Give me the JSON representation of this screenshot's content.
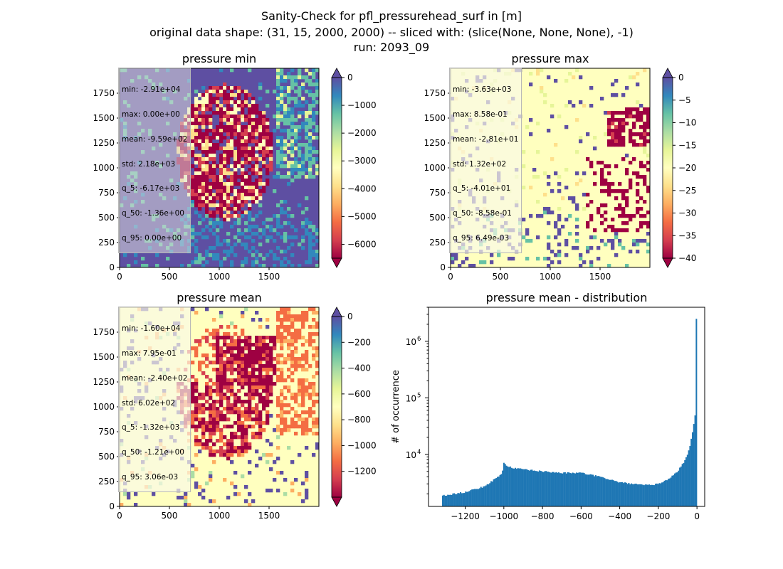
{
  "figure": {
    "title_lines": [
      "Sanity-Check for pfl_pressurehead_surf in [m]",
      "original data shape: (31, 15, 2000, 2000) -- sliced with: (slice(None, None, None), -1)",
      "run: 2093_09"
    ]
  },
  "colors": {
    "spectral_stops": [
      "#9e0142",
      "#d53e4f",
      "#f46d43",
      "#fdae61",
      "#fee08b",
      "#ffffbf",
      "#e6f598",
      "#abdda4",
      "#66c2a5",
      "#3288bd",
      "#5e4fa2"
    ],
    "hist_bar": "#1f77b4"
  },
  "chart_data": [
    {
      "type": "heatmap",
      "title": "pressure min",
      "xlim": [
        0,
        2000
      ],
      "ylim": [
        0,
        2000
      ],
      "xticks": [
        0,
        500,
        1000,
        1500
      ],
      "yticks": [
        0,
        250,
        500,
        750,
        1000,
        1250,
        1500,
        1750
      ],
      "colorbar": {
        "vmin": -6500,
        "vmax": 0,
        "ticks": [
          0,
          -1000,
          -2000,
          -3000,
          -4000,
          -5000,
          -6000
        ],
        "tick_labels": [
          "0",
          "−1000",
          "−2000",
          "−3000",
          "−4000",
          "−5000",
          "−6000"
        ],
        "extend": "both",
        "cmap": "Spectral"
      },
      "stats": [
        "min: -2.91e+04",
        "max: 0.00e+00",
        "mean: -9.59e+02",
        "std: 2.18e+03",
        "q_5: -6.17e+03",
        "q_50: -1.36e+00",
        "q_95: 0.00e+00"
      ]
    },
    {
      "type": "heatmap",
      "title": "pressure max",
      "xlim": [
        0,
        2000
      ],
      "ylim": [
        0,
        2000
      ],
      "xticks": [
        0,
        500,
        1000,
        1500
      ],
      "yticks": [
        0,
        250,
        500,
        750,
        1000,
        1250,
        1500,
        1750
      ],
      "colorbar": {
        "vmin": -40,
        "vmax": 0,
        "ticks": [
          0,
          -5,
          -10,
          -15,
          -20,
          -25,
          -30,
          -35,
          -40
        ],
        "tick_labels": [
          "0",
          "−5",
          "−10",
          "−15",
          "−20",
          "−25",
          "−30",
          "−35",
          "−40"
        ],
        "extend": "both",
        "cmap": "Spectral"
      },
      "stats": [
        "min: -3.63e+03",
        "max: 8.58e-01",
        "mean: -2.81e+01",
        "std: 1.32e+02",
        "q_5: -4.01e+01",
        "q_50: -8.58e-01",
        "q_95: 6.49e-03"
      ]
    },
    {
      "type": "heatmap",
      "title": "pressure mean",
      "xlim": [
        0,
        2000
      ],
      "ylim": [
        0,
        2000
      ],
      "xticks": [
        0,
        500,
        1000,
        1500
      ],
      "yticks": [
        0,
        250,
        500,
        750,
        1000,
        1250,
        1500,
        1750
      ],
      "colorbar": {
        "vmin": -1400,
        "vmax": 0,
        "ticks": [
          0,
          -200,
          -400,
          -600,
          -800,
          -1000,
          -1200
        ],
        "tick_labels": [
          "0",
          "−200",
          "−400",
          "−600",
          "−800",
          "−1000",
          "−1200"
        ],
        "extend": "both",
        "cmap": "Spectral"
      },
      "stats": [
        "min: -1.60e+04",
        "max: 7.95e-01",
        "mean: -2.40e+02",
        "std: 6.02e+02",
        "q_5: -1.32e+03",
        "q_50: -1.21e+00",
        "q_95: 3.06e-03"
      ]
    },
    {
      "type": "bar",
      "title": "pressure mean - distribution",
      "ylabel": "# of occurrence",
      "yscale": "log",
      "xlim": [
        -1390,
        40
      ],
      "ylim": [
        1200,
        4000000
      ],
      "xticks": [
        -1200,
        -1000,
        -800,
        -600,
        -400,
        -200,
        0
      ],
      "xtick_labels": [
        "−1200",
        "−1000",
        "−800",
        "−600",
        "−400",
        "−200",
        "0"
      ],
      "yticks": [
        10000,
        100000,
        1000000
      ],
      "ytick_labels": [
        "10",
        "10",
        "10"
      ],
      "ytick_exponents": [
        "4",
        "5",
        "6"
      ],
      "bin_range": [
        -1320,
        0
      ],
      "bin_count": 200,
      "profile_x": [
        -1320,
        -1200,
        -1100,
        -1010,
        -1000,
        -990,
        -960,
        -900,
        -800,
        -700,
        -600,
        -500,
        -400,
        -300,
        -250,
        -200,
        -150,
        -100,
        -60,
        -40,
        -25,
        -15,
        -8,
        -4,
        -1,
        0
      ],
      "profile_counts": [
        1850,
        2150,
        2700,
        4500,
        7200,
        6500,
        5800,
        5400,
        5000,
        4700,
        4700,
        4000,
        3200,
        2900,
        2850,
        3000,
        3600,
        5000,
        8000,
        12500,
        22000,
        38000,
        55000,
        40000,
        2500000,
        2500000
      ]
    }
  ]
}
